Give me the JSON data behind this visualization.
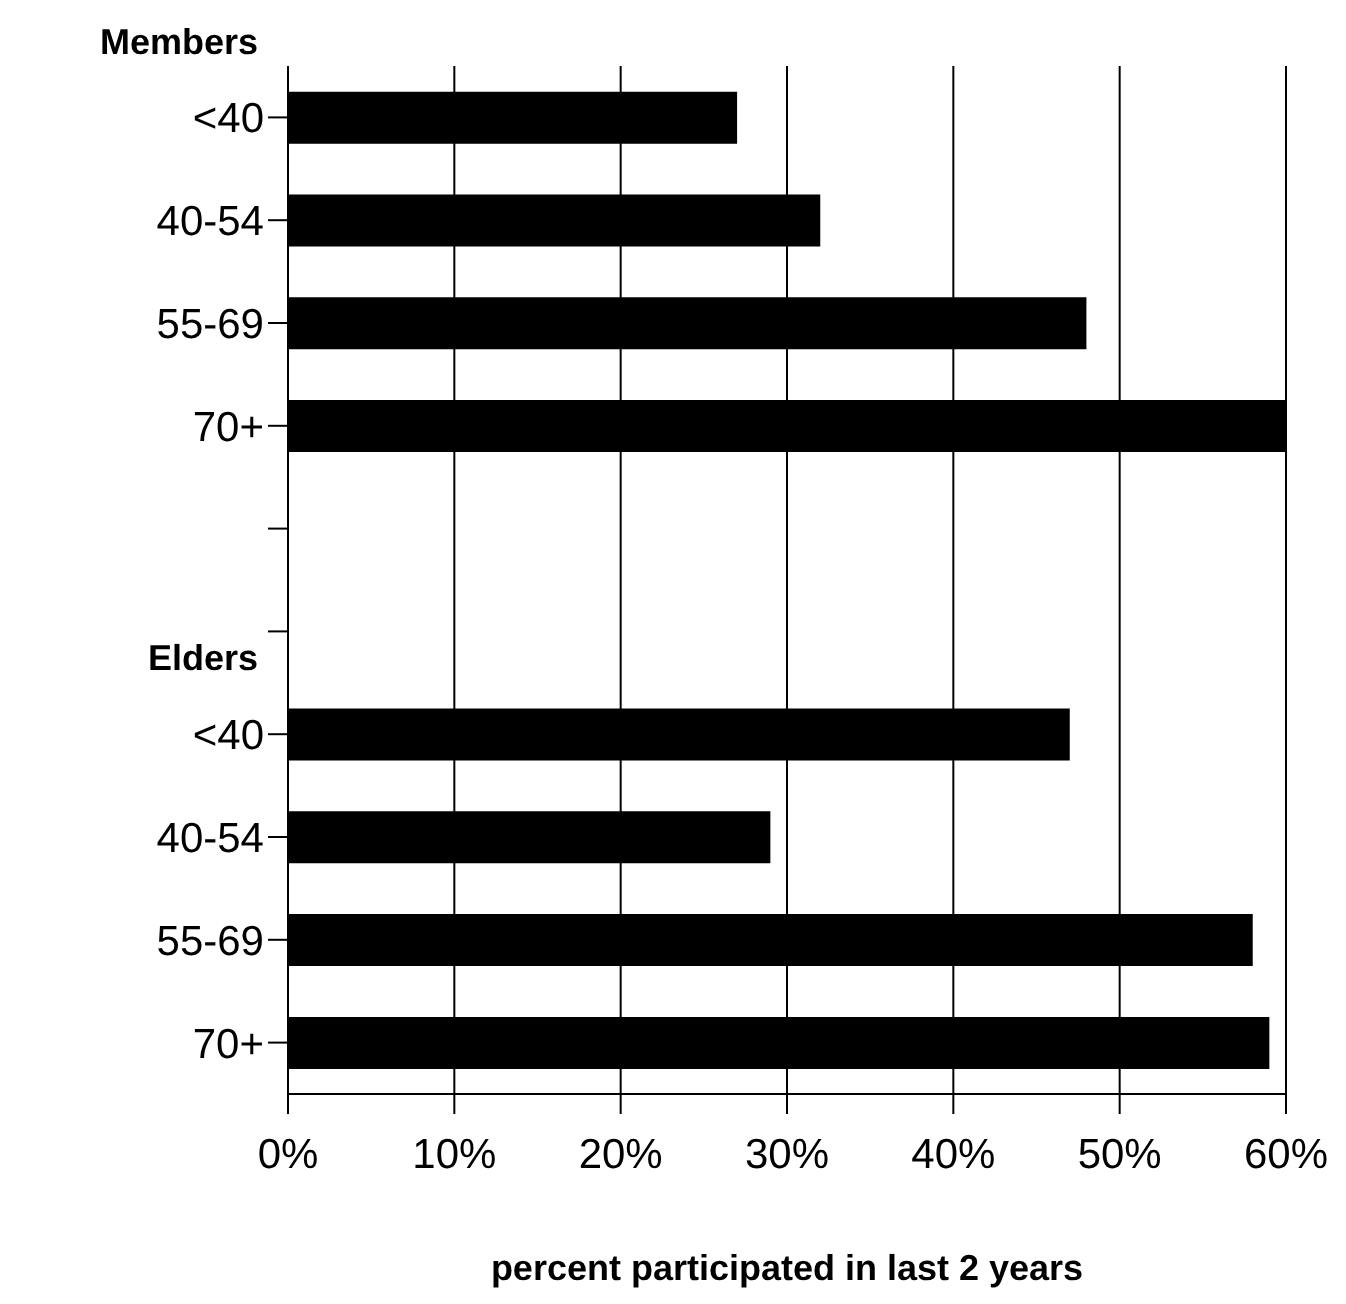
{
  "chart_data": {
    "type": "bar",
    "orientation": "horizontal",
    "xlabel": "percent participated in last 2 years",
    "categories": [
      "<40",
      "40-54",
      "55-69",
      "70+",
      null,
      null,
      "<40",
      "40-54",
      "55-69",
      "70+"
    ],
    "values": [
      27,
      32,
      48,
      60,
      null,
      null,
      47,
      29,
      58,
      59
    ],
    "color": "#000000",
    "xlim": [
      0,
      60
    ],
    "xticks": [
      {
        "value": 0,
        "label": "0%"
      },
      {
        "value": 10,
        "label": "10%"
      },
      {
        "value": 20,
        "label": "20%"
      },
      {
        "value": 30,
        "label": "30%"
      },
      {
        "value": 40,
        "label": "40%"
      },
      {
        "value": 50,
        "label": "50%"
      },
      {
        "value": 60,
        "label": "60%"
      }
    ],
    "annotations": [
      "Members",
      "Elders"
    ],
    "grid": "x"
  }
}
